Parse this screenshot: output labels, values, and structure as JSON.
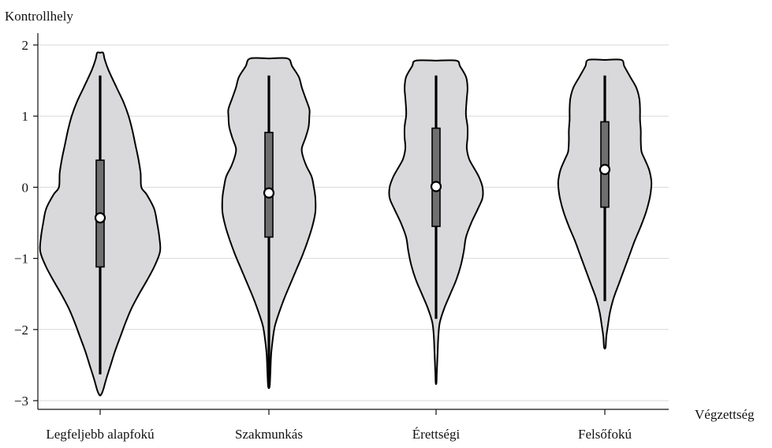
{
  "chart_data": {
    "type": "violin",
    "ylabel": "Kontrollhely",
    "xlabel": "Végzettség",
    "ylim": [
      -3.1,
      2.1
    ],
    "yticks": [
      2,
      1,
      0,
      -1,
      -2,
      -3
    ],
    "ytick_labels": [
      "2",
      "1",
      "0",
      "−1",
      "−2",
      "−3"
    ],
    "grid": true,
    "categories": [
      "Legfeljebb alapfokú",
      "Szakmunkás",
      "Érettségi",
      "Felsőfokú"
    ],
    "violins": [
      {
        "median": -0.43,
        "q1": -1.12,
        "q3": 0.38,
        "whisker_low": -2.63,
        "whisker_high": 1.57,
        "profile": [
          [
            1.89,
            0.04
          ],
          [
            1.8,
            0.06
          ],
          [
            1.65,
            0.11
          ],
          [
            1.4,
            0.22
          ],
          [
            1.2,
            0.31
          ],
          [
            1.0,
            0.38
          ],
          [
            0.8,
            0.43
          ],
          [
            0.6,
            0.47
          ],
          [
            0.4,
            0.51
          ],
          [
            0.2,
            0.54
          ],
          [
            0.0,
            0.55
          ],
          [
            -0.1,
            0.62
          ],
          [
            -0.3,
            0.72
          ],
          [
            -0.5,
            0.76
          ],
          [
            -0.7,
            0.79
          ],
          [
            -0.9,
            0.8
          ],
          [
            -1.1,
            0.73
          ],
          [
            -1.3,
            0.63
          ],
          [
            -1.5,
            0.52
          ],
          [
            -1.7,
            0.42
          ],
          [
            -1.9,
            0.34
          ],
          [
            -2.1,
            0.27
          ],
          [
            -2.3,
            0.2
          ],
          [
            -2.5,
            0.14
          ],
          [
            -2.7,
            0.08
          ],
          [
            -2.85,
            0.04
          ],
          [
            -2.92,
            0.01
          ]
        ]
      },
      {
        "median": -0.08,
        "q1": -0.7,
        "q3": 0.77,
        "whisker_low": -2.8,
        "whisker_high": 1.57,
        "profile": [
          [
            1.81,
            0.25
          ],
          [
            1.7,
            0.31
          ],
          [
            1.55,
            0.4
          ],
          [
            1.4,
            0.44
          ],
          [
            1.25,
            0.49
          ],
          [
            1.1,
            0.54
          ],
          [
            1.0,
            0.54
          ],
          [
            0.85,
            0.53
          ],
          [
            0.7,
            0.49
          ],
          [
            0.55,
            0.44
          ],
          [
            0.45,
            0.45
          ],
          [
            0.3,
            0.5
          ],
          [
            0.15,
            0.57
          ],
          [
            0.0,
            0.6
          ],
          [
            -0.15,
            0.62
          ],
          [
            -0.35,
            0.62
          ],
          [
            -0.55,
            0.58
          ],
          [
            -0.75,
            0.52
          ],
          [
            -0.95,
            0.45
          ],
          [
            -1.15,
            0.37
          ],
          [
            -1.35,
            0.29
          ],
          [
            -1.55,
            0.21
          ],
          [
            -1.75,
            0.14
          ],
          [
            -1.95,
            0.08
          ],
          [
            -2.15,
            0.05
          ],
          [
            -2.35,
            0.03
          ],
          [
            -2.6,
            0.02
          ],
          [
            -2.8,
            0.01
          ]
        ]
      },
      {
        "median": 0.01,
        "q1": -0.55,
        "q3": 0.83,
        "whisker_low": -1.85,
        "whisker_high": 1.57,
        "profile": [
          [
            1.78,
            0.27
          ],
          [
            1.7,
            0.32
          ],
          [
            1.55,
            0.4
          ],
          [
            1.4,
            0.42
          ],
          [
            1.25,
            0.41
          ],
          [
            1.1,
            0.4
          ],
          [
            1.0,
            0.4
          ],
          [
            0.85,
            0.42
          ],
          [
            0.7,
            0.42
          ],
          [
            0.55,
            0.41
          ],
          [
            0.4,
            0.44
          ],
          [
            0.3,
            0.49
          ],
          [
            0.15,
            0.57
          ],
          [
            0.0,
            0.62
          ],
          [
            -0.15,
            0.62
          ],
          [
            -0.3,
            0.56
          ],
          [
            -0.5,
            0.47
          ],
          [
            -0.7,
            0.4
          ],
          [
            -0.9,
            0.37
          ],
          [
            -1.1,
            0.33
          ],
          [
            -1.3,
            0.27
          ],
          [
            -1.5,
            0.19
          ],
          [
            -1.7,
            0.11
          ],
          [
            -1.9,
            0.05
          ],
          [
            -2.1,
            0.03
          ],
          [
            -2.35,
            0.02
          ],
          [
            -2.6,
            0.01
          ],
          [
            -2.75,
            0.005
          ]
        ]
      },
      {
        "median": 0.25,
        "q1": -0.28,
        "q3": 0.92,
        "whisker_low": -1.6,
        "whisker_high": 1.57,
        "profile": [
          [
            1.79,
            0.22
          ],
          [
            1.7,
            0.26
          ],
          [
            1.55,
            0.34
          ],
          [
            1.4,
            0.42
          ],
          [
            1.25,
            0.46
          ],
          [
            1.1,
            0.47
          ],
          [
            0.95,
            0.47
          ],
          [
            0.8,
            0.48
          ],
          [
            0.65,
            0.48
          ],
          [
            0.5,
            0.49
          ],
          [
            0.4,
            0.53
          ],
          [
            0.25,
            0.59
          ],
          [
            0.1,
            0.62
          ],
          [
            0.0,
            0.62
          ],
          [
            -0.15,
            0.6
          ],
          [
            -0.35,
            0.55
          ],
          [
            -0.55,
            0.48
          ],
          [
            -0.75,
            0.4
          ],
          [
            -0.95,
            0.33
          ],
          [
            -1.15,
            0.26
          ],
          [
            -1.35,
            0.19
          ],
          [
            -1.55,
            0.12
          ],
          [
            -1.75,
            0.07
          ],
          [
            -1.95,
            0.04
          ],
          [
            -2.1,
            0.02
          ],
          [
            -2.25,
            0.01
          ]
        ]
      }
    ]
  }
}
